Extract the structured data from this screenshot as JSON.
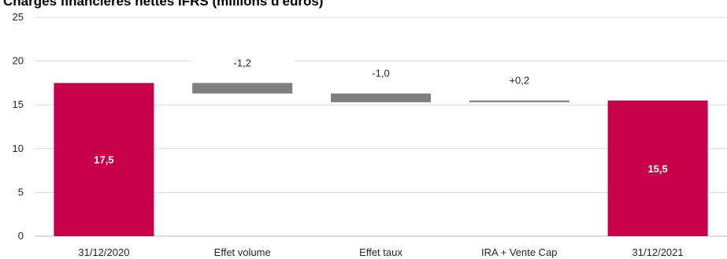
{
  "chart_data": {
    "type": "bar",
    "subtype": "waterfall",
    "title": "Charges financières nettes IFRS (millions d'euros)",
    "categories": [
      "31/12/2020",
      "Effet volume",
      "Effet taux",
      "IRA + Vente Cap",
      "31/12/2021"
    ],
    "values": [
      17.5,
      -1.2,
      -1.0,
      0.2,
      15.5
    ],
    "data_labels": [
      "17,5",
      "-1,2",
      "-1,0",
      "+0,2",
      "15,5"
    ],
    "bar_kinds": [
      "total",
      "delta",
      "delta",
      "delta",
      "total"
    ],
    "ylim": [
      0,
      25
    ],
    "yticks": [
      "0",
      "5",
      "10",
      "15",
      "20",
      "25"
    ],
    "xlabel": "",
    "ylabel": "",
    "grid": true,
    "legend": "none",
    "colors": {
      "total": "#C8004B",
      "delta": "#7F7F7F",
      "grid": "#D9D9D9",
      "axis": "#BFBFBF"
    }
  }
}
